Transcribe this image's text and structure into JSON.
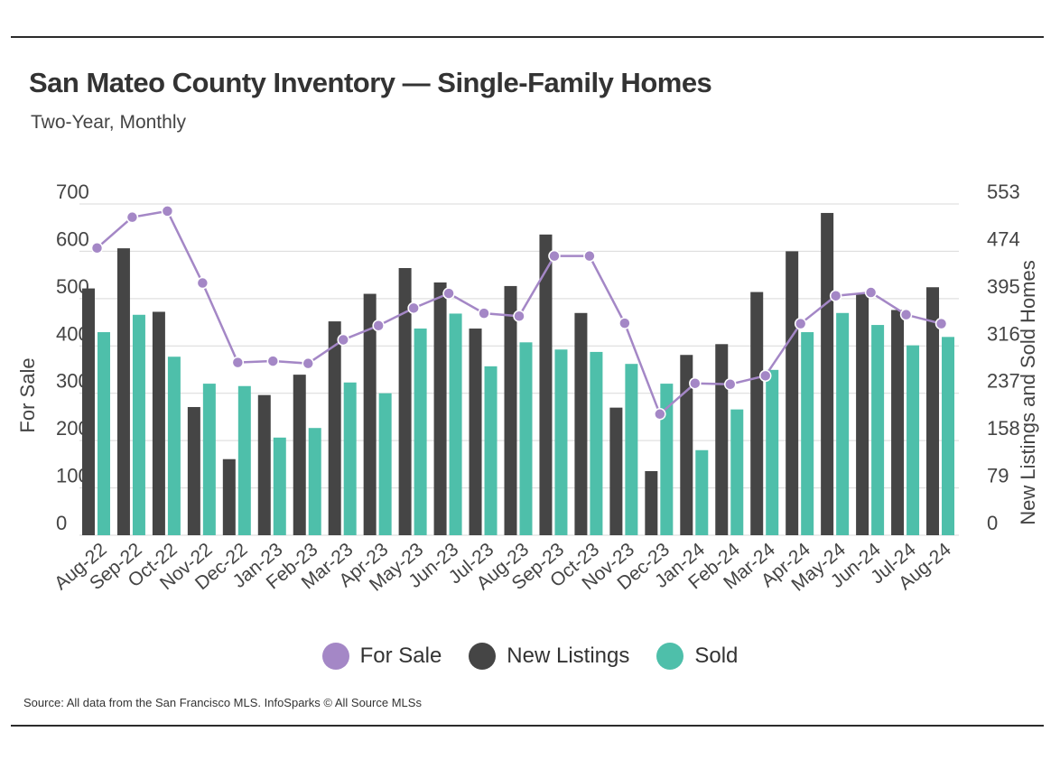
{
  "header": {
    "title": "San Mateo County Inventory — Single-Family Homes",
    "subtitle": "Two-Year, Monthly"
  },
  "footer": {
    "source": "Source:  All data from the San Francisco MLS. InfoSparks © All Source MLSs"
  },
  "colors": {
    "for_sale": "#a487c6",
    "new_listings": "#454545",
    "sold": "#4ebfaa",
    "grid": "#d9d9d9",
    "axis_text": "#444444"
  },
  "legend": [
    {
      "label": "For Sale",
      "color": "#a487c6"
    },
    {
      "label": "New Listings",
      "color": "#454545"
    },
    {
      "label": "Sold",
      "color": "#4ebfaa"
    }
  ],
  "chart_data": {
    "type": "bar",
    "title": "San Mateo County Inventory — Single-Family Homes",
    "subtitle": "Two-Year, Monthly",
    "categories": [
      "Aug-22",
      "Sep-22",
      "Oct-22",
      "Nov-22",
      "Dec-22",
      "Jan-23",
      "Feb-23",
      "Mar-23",
      "Apr-23",
      "May-23",
      "Jun-23",
      "Jul-23",
      "Aug-23",
      "Sep-23",
      "Oct-23",
      "Nov-23",
      "Dec-23",
      "Jan-24",
      "Feb-24",
      "Mar-24",
      "Apr-24",
      "May-24",
      "Jun-24",
      "Jul-24",
      "Aug-24"
    ],
    "ylabel_left": "For Sale",
    "ylabel_right": "New Listings and Sold Homes",
    "ylim_left": [
      0,
      700
    ],
    "ylim_right": [
      0,
      553
    ],
    "yticks_left": [
      "0",
      "100",
      "200",
      "300",
      "400",
      "500",
      "600",
      "700"
    ],
    "yticks_right": [
      "0",
      "79",
      "158",
      "237",
      "316",
      "395",
      "474",
      "553"
    ],
    "grid": true,
    "legend_position": "bottom",
    "series": [
      {
        "name": "New Listings",
        "type": "bar",
        "axis": "right",
        "values": [
          412,
          479,
          373,
          214,
          127,
          234,
          268,
          357,
          403,
          446,
          422,
          345,
          416,
          502,
          371,
          213,
          107,
          301,
          319,
          406,
          474,
          538,
          404,
          376,
          414
        ]
      },
      {
        "name": "Sold",
        "type": "bar",
        "axis": "right",
        "values": [
          339,
          368,
          298,
          253,
          249,
          163,
          179,
          255,
          237,
          345,
          370,
          282,
          322,
          310,
          306,
          286,
          253,
          142,
          210,
          276,
          339,
          371,
          351,
          317,
          331
        ]
      },
      {
        "name": "For Sale",
        "type": "line",
        "axis": "left",
        "values": [
          607,
          672,
          685,
          533,
          365,
          368,
          363,
          413,
          443,
          480,
          511,
          469,
          463,
          590,
          590,
          448,
          256,
          321,
          319,
          337,
          447,
          506,
          513,
          466,
          447
        ]
      }
    ]
  }
}
